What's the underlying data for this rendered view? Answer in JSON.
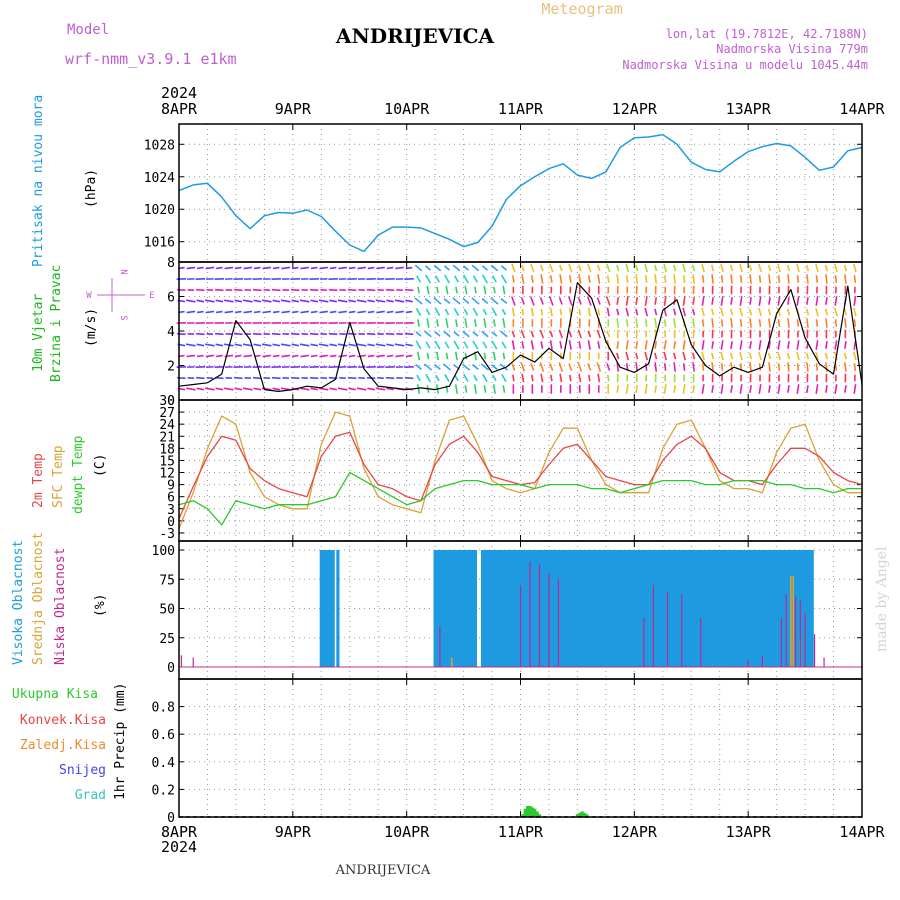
{
  "header": {
    "model_label": "Model",
    "model_name": "wrf-nmm_v3.9.1 e1km",
    "station": "ANDRIJEVICA",
    "product": "Meteogram",
    "lonlat": "lon,lat (19.7812E, 42.7188N)",
    "elev": "Nadmorska Visina 779m",
    "elev_model": "Nadmorska Visina u modelu 1045.44m",
    "year_top": "2024",
    "year_bottom": "2024",
    "footer_station": "ANDRIJEVICA",
    "credit": "made by Angel"
  },
  "colors": {
    "pressure": "#1e9be0",
    "wind_label": "#1db51d",
    "t2m": "#e84646",
    "tsfc": "#d9a235",
    "dew": "#2cc92c",
    "cloud_high": "#1e9be0",
    "cloud_mid": "#d9a235",
    "cloud_low": "#c02890",
    "precip_total": "#2cc92c",
    "precip_conv": "#e84646",
    "precip_frz": "#f08a30",
    "precip_snow": "#4646e8",
    "precip_grad": "#2ec8c8",
    "direction_legend": "#c060d0"
  },
  "panel_labels": {
    "pressure": {
      "name": "Pritisak na nivou mora",
      "unit": "(hPa)"
    },
    "wind": {
      "name1": "10m Vjetar",
      "name2": "Brzina i Pravac",
      "unit": "(m/s)"
    },
    "temp": {
      "name1": "2m Temp",
      "name2": "SFC Temp",
      "name3": "dewpt Temp",
      "unit": "(C)"
    },
    "cloud": {
      "name1": "Visoka Oblacnost",
      "name2": "Srednja Oblacnost",
      "name3": "Niska Oblacnost",
      "unit": "(%)"
    },
    "precip": {
      "legend": [
        "Ukupna Kisa",
        "Konvek.Kisa",
        "Zaledj.Kisa",
        "Snijeg",
        "Grad"
      ],
      "unit": "1hr Precip (mm)"
    }
  },
  "direction_legend": {
    "n": "N",
    "e": "E",
    "w": "W",
    "s": "S"
  },
  "chart_data": [
    {
      "type": "line",
      "name": "pressure",
      "x_ticks": [
        "8APR",
        "9APR",
        "10APR",
        "11APR",
        "12APR",
        "13APR",
        "14APR"
      ],
      "yticks": [
        1016,
        1020,
        1024,
        1028
      ],
      "ylim": [
        1013.5,
        1030.5
      ],
      "series": [
        {
          "name": "Pritisak na nivou mora",
          "x_hours": [
            0,
            3,
            6,
            9,
            12,
            15,
            18,
            21,
            24,
            27,
            30,
            33,
            36,
            39,
            42,
            45,
            48,
            51,
            54,
            57,
            60,
            63,
            66,
            69,
            72,
            75,
            78,
            81,
            84,
            87,
            90,
            93,
            96,
            99,
            102,
            105,
            108,
            111,
            114,
            117,
            120,
            123,
            126,
            129,
            132,
            135,
            138,
            141,
            144
          ],
          "values": [
            1022.3,
            1023.0,
            1023.2,
            1021.5,
            1019.2,
            1017.6,
            1019.2,
            1019.6,
            1019.5,
            1019.9,
            1019.1,
            1017.3,
            1015.6,
            1014.8,
            1016.8,
            1017.8,
            1017.8,
            1017.7,
            1017.0,
            1016.3,
            1015.4,
            1015.9,
            1017.9,
            1021.2,
            1022.9,
            1024.0,
            1025.0,
            1025.6,
            1024.2,
            1023.8,
            1024.6,
            1027.6,
            1028.8,
            1028.9,
            1029.2,
            1028.0,
            1025.8,
            1024.9,
            1024.6,
            1025.9,
            1027.1,
            1027.7,
            1028.1,
            1027.8,
            1026.4,
            1024.8,
            1025.2,
            1027.2,
            1027.6
          ]
        }
      ]
    },
    {
      "type": "line",
      "name": "wind",
      "x_ticks": [
        "8APR",
        "9APR",
        "10APR",
        "11APR",
        "12APR",
        "13APR",
        "14APR"
      ],
      "yticks": [
        0,
        2,
        4,
        6,
        8
      ],
      "ylim": [
        0,
        8
      ],
      "series": [
        {
          "name": "10m Vjetar",
          "x_hours": [
            0,
            3,
            6,
            9,
            12,
            15,
            18,
            21,
            24,
            27,
            30,
            33,
            36,
            39,
            42,
            45,
            48,
            51,
            54,
            57,
            60,
            63,
            66,
            69,
            72,
            75,
            78,
            81,
            84,
            87,
            90,
            93,
            96,
            99,
            102,
            105,
            108,
            111,
            114,
            117,
            120,
            123,
            126,
            129,
            132,
            135,
            138,
            141,
            144
          ],
          "values": [
            0.8,
            0.9,
            1.0,
            1.5,
            4.6,
            3.5,
            0.6,
            0.5,
            0.6,
            0.8,
            0.7,
            1.2,
            4.5,
            1.8,
            0.8,
            0.7,
            0.6,
            0.7,
            0.6,
            0.8,
            2.4,
            2.8,
            1.6,
            1.9,
            2.6,
            2.2,
            3.0,
            2.4,
            6.8,
            5.9,
            3.4,
            1.9,
            1.6,
            2.1,
            5.2,
            5.8,
            3.2,
            2.0,
            1.4,
            1.9,
            1.6,
            1.9,
            5.0,
            6.4,
            3.6,
            2.1,
            1.5,
            6.6,
            0.9
          ]
        }
      ]
    },
    {
      "type": "line",
      "name": "temperature",
      "x_ticks": [
        "8APR",
        "9APR",
        "10APR",
        "11APR",
        "12APR",
        "13APR",
        "14APR"
      ],
      "yticks": [
        -3,
        0,
        3,
        6,
        9,
        12,
        15,
        18,
        21,
        24,
        27,
        30
      ],
      "ylim": [
        -5,
        30
      ],
      "series": [
        {
          "name": "2m Temp",
          "x_hours": [
            0,
            3,
            6,
            9,
            12,
            15,
            18,
            21,
            24,
            27,
            30,
            33,
            36,
            39,
            42,
            45,
            48,
            51,
            54,
            57,
            60,
            63,
            66,
            69,
            72,
            75,
            78,
            81,
            84,
            87,
            90,
            93,
            96,
            99,
            102,
            105,
            108,
            111,
            114,
            117,
            120,
            123,
            126,
            129,
            132,
            135,
            138,
            141,
            144
          ],
          "values": [
            0.5,
            8.5,
            16,
            21,
            20,
            13,
            10,
            8,
            7,
            6,
            16,
            21,
            22,
            14,
            9,
            8,
            6,
            5,
            14,
            19,
            21,
            17,
            11,
            10,
            9,
            9.5,
            14,
            18,
            19,
            15,
            11,
            10,
            9,
            9,
            15,
            19,
            21,
            18,
            12,
            10,
            10,
            9,
            14,
            18,
            18,
            16,
            12,
            10,
            9
          ]
        },
        {
          "name": "SFC Temp",
          "x_hours": [
            0,
            3,
            6,
            9,
            12,
            15,
            18,
            21,
            24,
            27,
            30,
            33,
            36,
            39,
            42,
            45,
            48,
            51,
            54,
            57,
            60,
            63,
            66,
            69,
            72,
            75,
            78,
            81,
            84,
            87,
            90,
            93,
            96,
            99,
            102,
            105,
            108,
            111,
            114,
            117,
            120,
            123,
            126,
            129,
            132,
            135,
            138,
            141,
            144
          ],
          "values": [
            -2,
            7,
            18,
            26,
            24,
            12,
            6,
            4,
            3,
            3,
            19,
            27,
            26,
            13,
            6,
            4,
            3,
            2,
            15,
            25,
            26,
            19,
            10,
            8,
            7,
            8,
            17,
            23,
            23,
            15,
            9,
            7,
            7,
            7,
            18,
            24,
            25,
            18,
            10,
            8,
            8,
            7,
            17,
            23,
            24,
            15,
            9,
            7,
            7
          ]
        },
        {
          "name": "dewpt Temp",
          "x_hours": [
            0,
            3,
            6,
            9,
            12,
            15,
            18,
            21,
            24,
            27,
            30,
            33,
            36,
            39,
            42,
            45,
            48,
            51,
            54,
            57,
            60,
            63,
            66,
            69,
            72,
            75,
            78,
            81,
            84,
            87,
            90,
            93,
            96,
            99,
            102,
            105,
            108,
            111,
            114,
            117,
            120,
            123,
            126,
            129,
            132,
            135,
            138,
            141,
            144
          ],
          "values": [
            4,
            5,
            3,
            -1,
            5,
            4,
            3,
            4,
            4,
            4,
            5,
            6,
            12,
            10,
            8,
            6,
            4,
            5,
            8,
            9,
            10,
            10,
            9,
            9,
            9,
            8,
            9,
            9,
            9,
            8,
            8,
            7,
            8,
            9,
            10,
            10,
            10,
            9,
            9,
            10,
            10,
            10,
            9,
            9,
            8,
            8,
            7,
            8,
            8
          ]
        }
      ]
    },
    {
      "type": "bar",
      "name": "cloud",
      "x_ticks": [
        "8APR",
        "9APR",
        "10APR",
        "11APR",
        "12APR",
        "13APR",
        "14APR"
      ],
      "yticks": [
        0,
        25,
        50,
        75,
        100
      ],
      "ylim": [
        0,
        100
      ],
      "series": [
        {
          "name": "Visoka Oblacnost",
          "x_hours": [
            30,
            30.5,
            31,
            31.5,
            32,
            32.5,
            33,
            33.5,
            54,
            54.5,
            55,
            55.5,
            56,
            56.5,
            57,
            57.5,
            58,
            58.5,
            59,
            59.5,
            60,
            60.5,
            61,
            61.5,
            62,
            62.5,
            63,
            63.5,
            64,
            64.5,
            65,
            65.5,
            66,
            66.5,
            67,
            67.5,
            68,
            68.5,
            69,
            69.5,
            70,
            70.5,
            71,
            71.5,
            72,
            72.5,
            73,
            73.5,
            74,
            74.5,
            75,
            75.5,
            76,
            76.5,
            77,
            77.5,
            78,
            78.5,
            79,
            79.5,
            80,
            80.5,
            81,
            81.5,
            82,
            82.5,
            83,
            83.5,
            84,
            84.5,
            85,
            85.5,
            86,
            86.5,
            87,
            87.5,
            88,
            88.5,
            89,
            89.5,
            90,
            90.5,
            91,
            91.5,
            92,
            92.5,
            93,
            93.5,
            94,
            94.5,
            95,
            95.5,
            96,
            96.5,
            97,
            97.5,
            98,
            98.5,
            99,
            99.5,
            100,
            100.5,
            101,
            101.5,
            102,
            102.5,
            103,
            103.5,
            104,
            104.5,
            105,
            105.5,
            106,
            106.5,
            107,
            107.5,
            108,
            108.5,
            109,
            109.5,
            110,
            110.5,
            111,
            111.5,
            112,
            112.5,
            113,
            113.5,
            114,
            114.5,
            115,
            115.5,
            116,
            116.5,
            117,
            117.5,
            118,
            118.5,
            119,
            119.5,
            120,
            120.5,
            121,
            121.5,
            122,
            122.5,
            123,
            123.5,
            124,
            124.5,
            125,
            125.5,
            126,
            126.5,
            127,
            127.5,
            128,
            128.5,
            129,
            129.5,
            130,
            130.5,
            131,
            131.5,
            132,
            132.5,
            133,
            133.5
          ],
          "values": [
            100,
            100,
            100,
            100,
            100,
            100,
            0,
            100,
            100,
            100,
            100,
            100,
            100,
            100,
            100,
            100,
            100,
            100,
            100,
            100,
            100,
            100,
            100,
            100,
            100,
            100,
            0,
            0,
            100,
            100,
            100,
            100,
            100,
            100,
            100,
            100,
            100,
            100,
            100,
            100,
            100,
            100,
            100,
            100,
            100,
            100,
            100,
            100,
            100,
            100,
            100,
            100,
            100,
            100,
            100,
            100,
            100,
            100,
            100,
            100,
            100,
            100,
            100,
            100,
            100,
            100,
            100,
            100,
            100,
            100,
            100,
            100,
            100,
            100,
            100,
            100,
            100,
            100,
            100,
            100,
            100,
            100,
            100,
            100,
            100,
            100,
            100,
            100,
            100,
            100,
            100,
            100,
            100,
            100,
            100,
            100,
            100,
            100,
            100,
            100,
            100,
            100,
            100,
            100,
            100,
            100,
            100,
            100,
            100,
            100,
            100,
            100,
            100,
            100,
            100,
            100,
            100,
            100,
            100,
            100,
            100,
            100,
            100,
            100,
            100,
            100,
            100,
            100,
            100,
            100,
            100,
            100,
            100,
            100,
            100,
            100,
            100,
            100,
            100,
            100,
            100,
            100,
            100,
            100,
            100,
            100,
            100,
            100,
            100,
            100,
            100,
            100,
            100,
            100,
            100,
            100,
            100,
            100,
            100,
            100,
            100,
            100,
            100,
            100,
            100,
            100,
            100,
            100
          ]
        },
        {
          "name": "Srednja Oblacnost",
          "x_hours": [
            57.5,
            129,
            129.5,
            131
          ],
          "values": [
            8,
            78,
            78,
            24
          ]
        },
        {
          "name": "Niska Oblacnost",
          "x_hours": [
            0.5,
            3,
            55,
            72,
            74,
            76,
            78,
            80,
            98,
            100,
            103,
            106,
            110,
            120,
            123,
            127,
            128,
            130,
            131,
            132,
            134,
            136
          ],
          "values": [
            10,
            8,
            35,
            70,
            90,
            88,
            80,
            75,
            42,
            70,
            64,
            62,
            42,
            6,
            10,
            42,
            62,
            60,
            57,
            46,
            28,
            8
          ]
        }
      ]
    },
    {
      "type": "bar",
      "name": "precipitation",
      "x_ticks": [
        "8APR",
        "9APR",
        "10APR",
        "11APR",
        "12APR",
        "13APR",
        "14APR"
      ],
      "yticks": [
        0,
        0.2,
        0.4,
        0.6,
        0.8
      ],
      "ylim": [
        0,
        1.0
      ],
      "series": [
        {
          "name": "Ukupna Kisa",
          "x_hours": [
            72.5,
            73,
            73.5,
            74,
            74.5,
            75,
            75.5,
            76,
            84,
            84.5,
            85,
            85.5,
            86
          ],
          "values": [
            0.02,
            0.06,
            0.08,
            0.08,
            0.07,
            0.06,
            0.04,
            0.02,
            0.02,
            0.03,
            0.04,
            0.03,
            0.02
          ]
        }
      ]
    }
  ]
}
